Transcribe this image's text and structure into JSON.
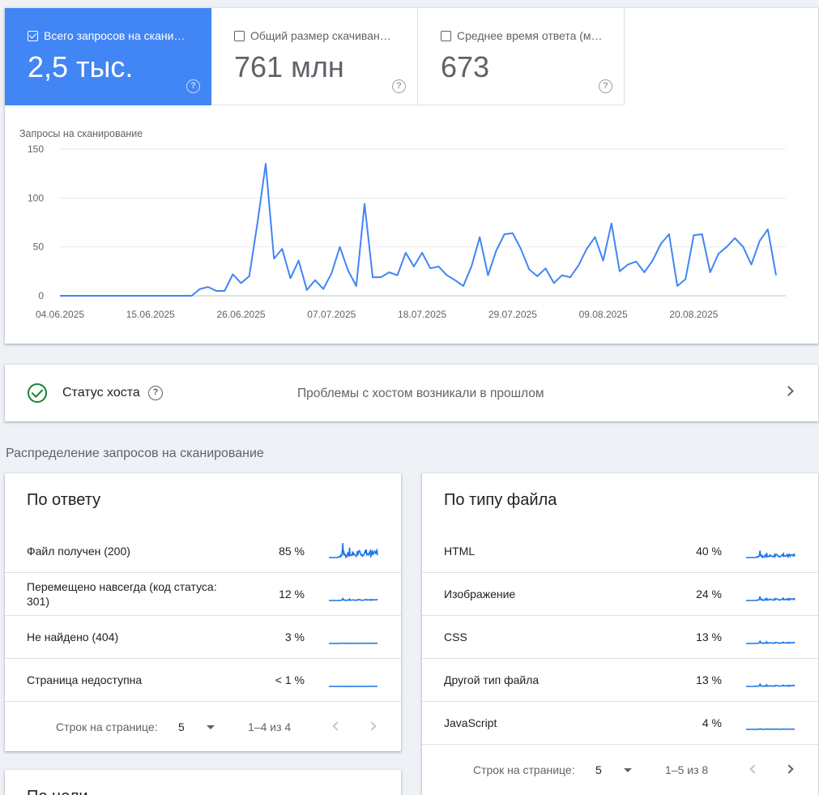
{
  "metrics": [
    {
      "label": "Всего запросов на скани…",
      "value": "2,5 тыс.",
      "checked": true
    },
    {
      "label": "Общий размер скачиван…",
      "value": "761 млн",
      "checked": false
    },
    {
      "label": "Среднее время ответа (м…",
      "value": "673",
      "checked": false
    }
  ],
  "chart_data": {
    "type": "line",
    "title": "Запросы на сканирование",
    "y_ticks": [
      "150",
      "100",
      "50",
      "0"
    ],
    "ylim": [
      0,
      150
    ],
    "x_tick_labels": [
      "04.06.2025",
      "15.06.2025",
      "26.06.2025",
      "07.07.2025",
      "18.07.2025",
      "29.07.2025",
      "09.08.2025",
      "20.08.2025"
    ],
    "x_start": "04.06.2025",
    "x_end": "30.08.2025",
    "color": "#4285f4",
    "grid": true,
    "values": [
      0,
      0,
      0,
      0,
      0,
      0,
      0,
      0,
      0,
      0,
      0,
      0,
      0,
      0,
      0,
      0,
      0,
      7,
      9,
      5,
      5,
      22,
      13,
      20,
      75,
      135,
      38,
      48,
      18,
      36,
      6,
      16,
      7,
      23,
      50,
      26,
      10,
      94,
      19,
      19,
      24,
      21,
      44,
      30,
      44,
      28,
      30,
      21,
      16,
      10,
      30,
      60,
      21,
      46,
      63,
      64,
      48,
      27,
      20,
      28,
      13,
      21,
      19,
      31,
      48,
      60,
      36,
      74,
      25,
      32,
      35,
      24,
      36,
      53,
      63,
      10,
      17,
      62,
      63,
      24,
      43,
      50,
      59,
      50,
      32,
      56,
      68,
      21
    ]
  },
  "host": {
    "title": "Статус хоста",
    "status": "Проблемы с хостом возникали в прошлом"
  },
  "section_title": "Распределение запросов на сканирование",
  "by_response": {
    "title": "По ответу",
    "rows": [
      {
        "label": "Файл получен (200)",
        "pct": "85 %"
      },
      {
        "label": "Перемещено навсегда (код статуса: 301)",
        "pct": "12 %"
      },
      {
        "label": "Не найдено (404)",
        "pct": "3 %"
      },
      {
        "label": "Страница недоступна",
        "pct": "< 1 %"
      }
    ],
    "pager": {
      "label": "Строк на странице:",
      "rows_per_page": "5",
      "range": "1–4 из 4"
    }
  },
  "by_type": {
    "title": "По типу файла",
    "rows": [
      {
        "label": "HTML",
        "pct": "40 %"
      },
      {
        "label": "Изображение",
        "pct": "24 %"
      },
      {
        "label": "CSS",
        "pct": "13 %"
      },
      {
        "label": "Другой тип файла",
        "pct": "13 %"
      },
      {
        "label": "JavaScript",
        "pct": "4 %"
      }
    ],
    "pager": {
      "label": "Строк на странице:",
      "rows_per_page": "5",
      "range": "1–5 из 8"
    }
  },
  "by_purpose": {
    "title": "По цели"
  },
  "colors": {
    "accent": "#4285f4",
    "spark": "#1a73e8",
    "ok": "#188038"
  }
}
